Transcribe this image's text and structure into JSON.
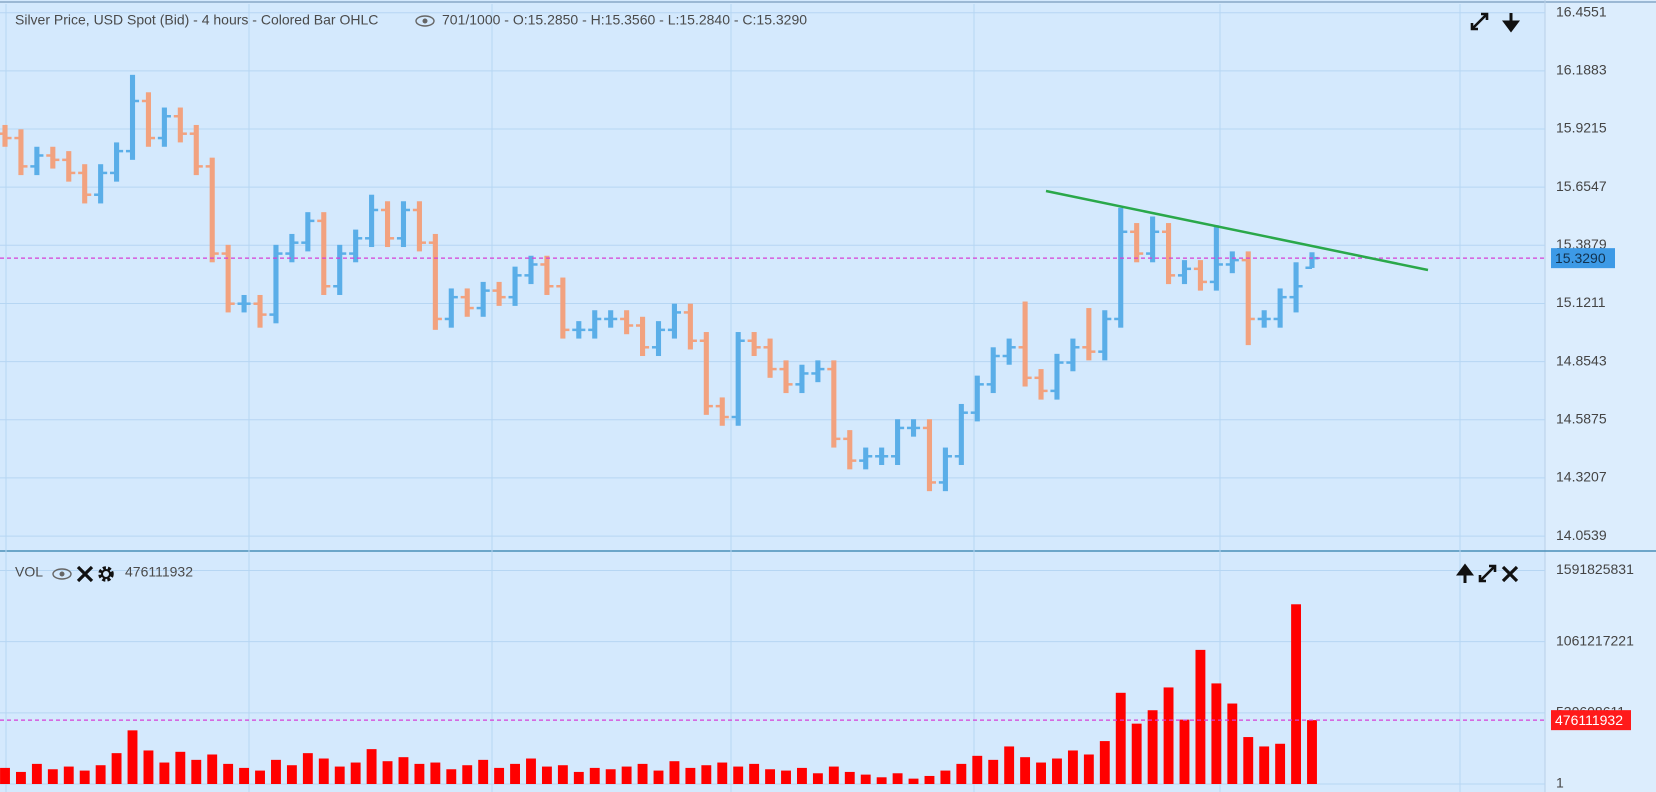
{
  "chart_data": [
    {
      "type": "ohlc",
      "title": "Silver Price, USD Spot (Bid) - 4 hours - Colored Bar OHLC",
      "subtitle": "701/1000 - O:15.2850 - H:15.3560 - L:15.2840 - C:15.3290",
      "open": [
        15.9,
        15.88,
        15.75,
        15.8,
        15.78,
        15.72,
        15.62,
        15.72,
        15.82,
        16.05,
        15.88,
        15.98,
        15.9,
        15.75,
        15.35,
        15.12,
        15.12,
        15.07,
        15.35,
        15.4,
        15.5,
        15.2,
        15.35,
        15.42,
        15.55,
        15.42,
        15.55,
        15.4,
        15.05,
        15.15,
        15.1,
        15.18,
        15.15,
        15.25,
        15.3,
        15.2,
        15.0,
        15.0,
        15.05,
        15.05,
        15.02,
        14.92,
        15.0,
        15.08,
        14.95,
        14.65,
        14.6,
        14.95,
        14.92,
        14.82,
        14.75,
        14.8,
        14.82,
        14.5,
        14.4,
        14.42,
        14.42,
        14.55,
        14.55,
        14.3,
        14.42,
        14.62,
        14.75,
        14.88,
        14.92,
        14.78,
        14.72,
        14.85,
        14.92,
        14.9,
        15.05,
        15.45,
        15.35,
        15.45,
        15.25,
        15.28,
        15.22,
        15.3,
        15.32,
        15.05,
        15.05,
        15.15,
        15.285
      ],
      "high": [
        15.94,
        15.92,
        15.84,
        15.84,
        15.82,
        15.76,
        15.76,
        15.86,
        16.17,
        16.09,
        16.02,
        16.02,
        15.94,
        15.79,
        15.39,
        15.16,
        15.16,
        15.39,
        15.44,
        15.54,
        15.54,
        15.39,
        15.46,
        15.62,
        15.59,
        15.59,
        15.59,
        15.44,
        15.19,
        15.19,
        15.22,
        15.22,
        15.29,
        15.34,
        15.34,
        15.24,
        15.04,
        15.09,
        15.09,
        15.09,
        15.06,
        15.04,
        15.12,
        15.12,
        14.99,
        14.69,
        14.99,
        14.99,
        14.96,
        14.86,
        14.84,
        14.86,
        14.86,
        14.54,
        14.46,
        14.46,
        14.59,
        14.59,
        14.59,
        14.46,
        14.66,
        14.79,
        14.92,
        14.96,
        15.13,
        14.82,
        14.89,
        14.96,
        15.1,
        15.09,
        15.56,
        15.49,
        15.52,
        15.49,
        15.32,
        15.32,
        15.48,
        15.36,
        15.36,
        15.09,
        15.19,
        15.31,
        15.356
      ],
      "low": [
        15.84,
        15.71,
        15.71,
        15.74,
        15.68,
        15.58,
        15.58,
        15.68,
        15.78,
        15.84,
        15.84,
        15.86,
        15.71,
        15.31,
        15.08,
        15.08,
        15.01,
        15.03,
        15.31,
        15.36,
        15.16,
        15.16,
        15.31,
        15.38,
        15.38,
        15.38,
        15.36,
        15.0,
        15.01,
        15.06,
        15.06,
        15.11,
        15.11,
        15.21,
        15.16,
        14.96,
        14.96,
        14.96,
        15.01,
        14.98,
        14.88,
        14.88,
        14.96,
        14.91,
        14.61,
        14.56,
        14.56,
        14.88,
        14.78,
        14.71,
        14.71,
        14.76,
        14.46,
        14.36,
        14.36,
        14.38,
        14.38,
        14.51,
        14.26,
        14.26,
        14.38,
        14.58,
        14.71,
        14.84,
        14.74,
        14.68,
        14.68,
        14.81,
        14.86,
        14.86,
        15.01,
        15.31,
        15.31,
        15.21,
        15.21,
        15.18,
        15.18,
        15.26,
        14.93,
        15.01,
        15.01,
        15.08,
        15.284
      ],
      "close": [
        15.88,
        15.75,
        15.8,
        15.78,
        15.72,
        15.62,
        15.72,
        15.82,
        16.05,
        15.88,
        15.98,
        15.9,
        15.75,
        15.35,
        15.12,
        15.12,
        15.07,
        15.35,
        15.4,
        15.5,
        15.2,
        15.35,
        15.42,
        15.55,
        15.42,
        15.55,
        15.4,
        15.05,
        15.15,
        15.1,
        15.18,
        15.15,
        15.25,
        15.3,
        15.2,
        15.0,
        15.0,
        15.05,
        15.05,
        15.02,
        14.92,
        15.0,
        15.08,
        14.95,
        14.65,
        14.6,
        14.95,
        14.92,
        14.82,
        14.75,
        14.8,
        14.82,
        14.5,
        14.4,
        14.42,
        14.42,
        14.55,
        14.55,
        14.3,
        14.42,
        14.62,
        14.75,
        14.88,
        14.92,
        14.78,
        14.72,
        14.85,
        14.92,
        14.9,
        15.05,
        15.45,
        15.35,
        15.45,
        15.25,
        15.28,
        15.22,
        15.3,
        15.32,
        15.05,
        15.05,
        15.15,
        15.2,
        15.329
      ],
      "up_color": "#5aaee8",
      "down_color": "#f2a27f",
      "ylim": [
        13.99,
        16.495
      ],
      "yticks": [
        14.0539,
        14.3207,
        14.5875,
        14.8543,
        15.1211,
        15.3879,
        15.6547,
        15.9215,
        16.1883,
        16.4551
      ],
      "grid": true,
      "last_value": {
        "value": 15.329,
        "label": "15.3290"
      },
      "last_color": "#3d9ae6"
    },
    {
      "type": "bar",
      "title": "VOL",
      "values": [
        120000000,
        90000000,
        150000000,
        110000000,
        130000000,
        100000000,
        140000000,
        230000000,
        400000000,
        250000000,
        160000000,
        240000000,
        180000000,
        220000000,
        150000000,
        120000000,
        100000000,
        180000000,
        140000000,
        230000000,
        190000000,
        130000000,
        160000000,
        260000000,
        170000000,
        200000000,
        150000000,
        160000000,
        110000000,
        140000000,
        180000000,
        120000000,
        150000000,
        190000000,
        130000000,
        140000000,
        90000000,
        120000000,
        110000000,
        130000000,
        150000000,
        100000000,
        170000000,
        120000000,
        140000000,
        160000000,
        130000000,
        150000000,
        110000000,
        100000000,
        120000000,
        80000000,
        130000000,
        90000000,
        70000000,
        50000000,
        80000000,
        40000000,
        60000000,
        100000000,
        150000000,
        210000000,
        180000000,
        280000000,
        200000000,
        160000000,
        190000000,
        250000000,
        220000000,
        320000000,
        680000000,
        450000000,
        550000000,
        720000000,
        480000000,
        1000000000,
        750000000,
        600000000,
        350000000,
        280000000,
        300000000,
        1340000000,
        476111932
      ],
      "color": "#ff0000",
      "ylim": [
        0,
        1700000000
      ],
      "yticks": [
        1,
        530608611,
        1061217221,
        1591825831
      ],
      "grid": true,
      "last_value": 476111932,
      "last_color": "#ff1a1a"
    }
  ]
}
